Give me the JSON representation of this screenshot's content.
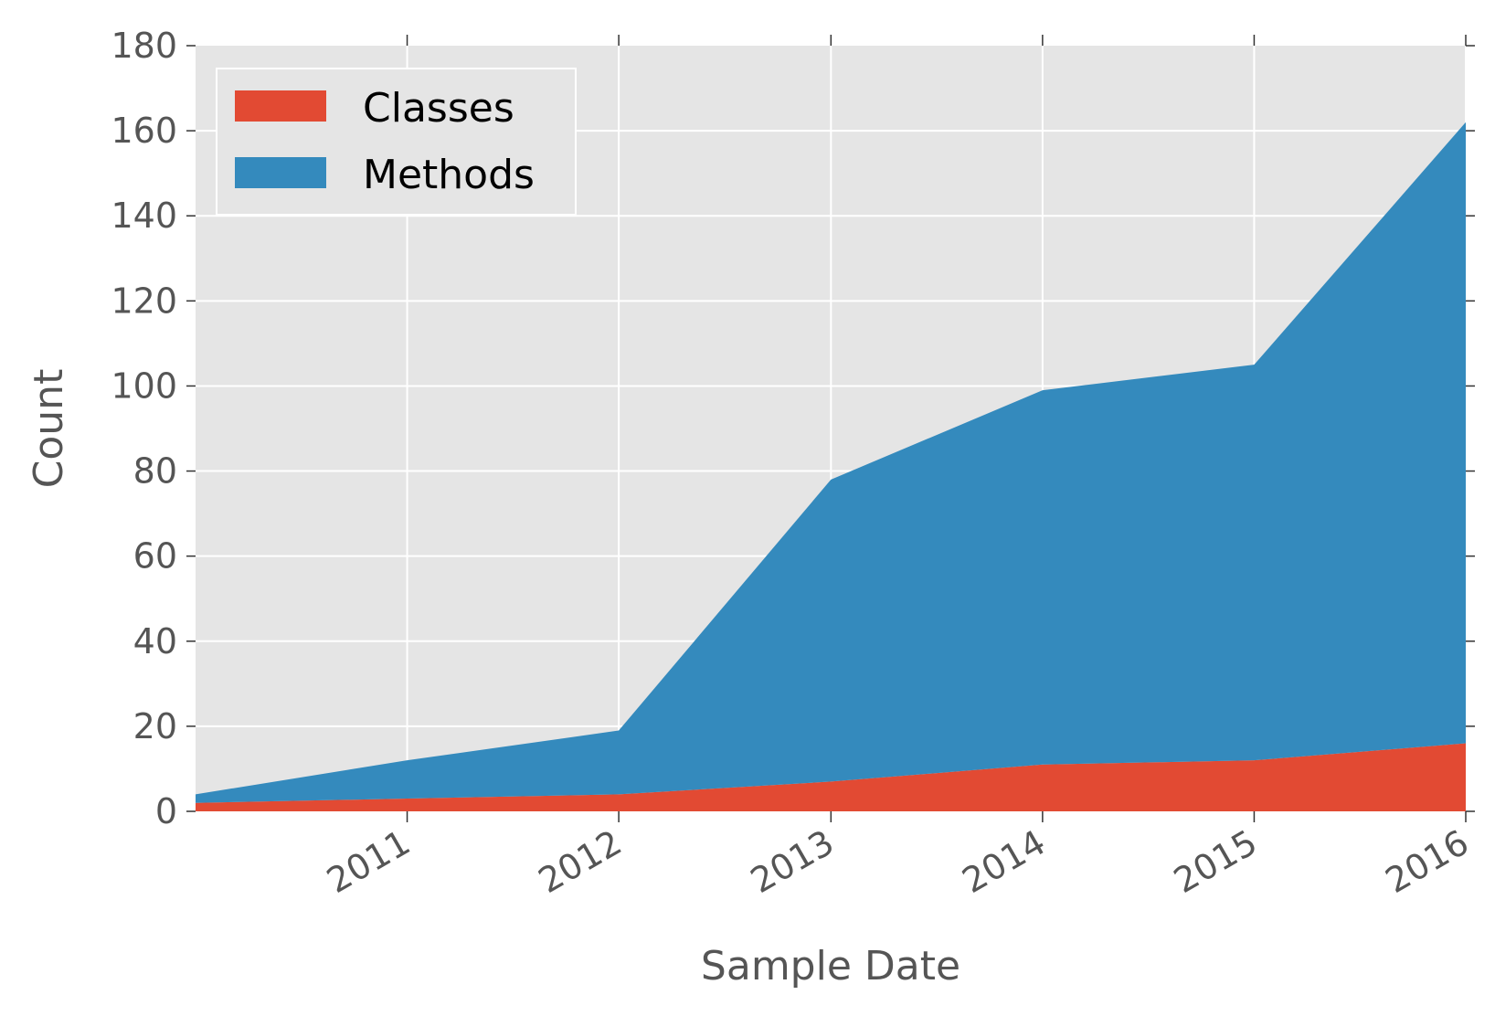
{
  "chart_data": {
    "type": "area",
    "stacked": true,
    "title": "",
    "xlabel": "Sample Date",
    "ylabel": "Count",
    "x": [
      "2010-01-01",
      "2011-01-01",
      "2012-01-01",
      "2013-01-01",
      "2014-01-01",
      "2015-01-01",
      "2016-01-01"
    ],
    "xticks": [
      "2011",
      "2012",
      "2013",
      "2014",
      "2015",
      "2016"
    ],
    "xlim": [
      "2010-01-01",
      "2016-01-01"
    ],
    "yticks": [
      "0",
      "20",
      "40",
      "60",
      "80",
      "100",
      "120",
      "140",
      "160",
      "180"
    ],
    "ylim": [
      0,
      180
    ],
    "series": [
      {
        "name": "Classes",
        "values": [
          2,
          3,
          4,
          7,
          11,
          12,
          16
        ],
        "color": "#e24a33"
      },
      {
        "name": "Methods",
        "values": [
          2,
          9,
          15,
          71,
          88,
          93,
          146
        ],
        "color": "#348abd"
      }
    ],
    "legend": {
      "position": "top-left",
      "entries": [
        "Classes",
        "Methods"
      ]
    },
    "grid": true,
    "style": {
      "background": "#e5e5e5",
      "grid_color": "#ffffff"
    }
  }
}
